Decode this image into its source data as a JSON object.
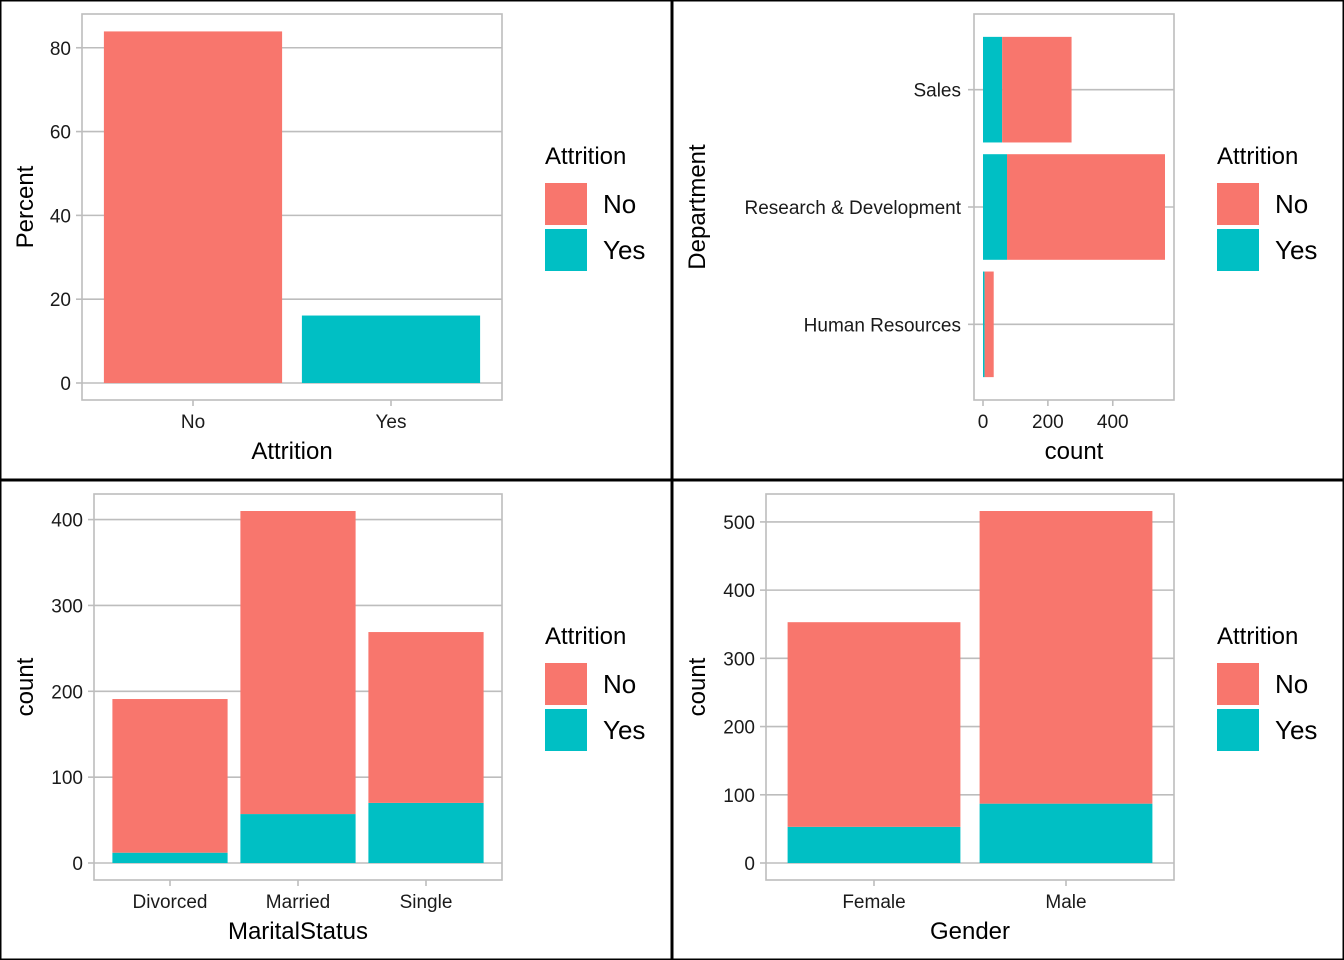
{
  "colors": {
    "No": "#F8766D",
    "Yes": "#00BFC4"
  },
  "chart_data": [
    {
      "type": "bar",
      "orientation": "vertical",
      "xlabel": "Attrition",
      "ylabel": "Percent",
      "categories": [
        "No",
        "Yes"
      ],
      "series": [
        {
          "name": "No",
          "values": [
            83.9,
            0
          ]
        },
        {
          "name": "Yes",
          "values": [
            0,
            16.1
          ]
        }
      ],
      "ylim": [
        0,
        84
      ],
      "yticks": [
        0,
        20,
        40,
        60,
        80
      ],
      "legend": {
        "title": "Attrition",
        "entries": [
          "No",
          "Yes"
        ],
        "position": "right"
      },
      "grid": true
    },
    {
      "type": "bar",
      "orientation": "horizontal",
      "stacked": true,
      "xlabel": "count",
      "ylabel": "Department",
      "categories": [
        "Human Resources",
        "Research & Development",
        "Sales"
      ],
      "series": [
        {
          "name": "Yes",
          "values": [
            5,
            74,
            59
          ]
        },
        {
          "name": "No",
          "values": [
            28,
            487,
            214
          ]
        }
      ],
      "xlim": [
        0,
        561
      ],
      "xticks": [
        0,
        200,
        400
      ],
      "legend": {
        "title": "Attrition",
        "entries": [
          "No",
          "Yes"
        ],
        "position": "right"
      },
      "grid": true
    },
    {
      "type": "bar",
      "orientation": "vertical",
      "stacked": true,
      "xlabel": "MaritalStatus",
      "ylabel": "count",
      "categories": [
        "Divorced",
        "Married",
        "Single"
      ],
      "series": [
        {
          "name": "Yes",
          "values": [
            12,
            57,
            70
          ]
        },
        {
          "name": "No",
          "values": [
            179,
            353,
            199
          ]
        }
      ],
      "ylim": [
        0,
        410
      ],
      "yticks": [
        0,
        100,
        200,
        300,
        400
      ],
      "legend": {
        "title": "Attrition",
        "entries": [
          "No",
          "Yes"
        ],
        "position": "right"
      },
      "grid": true
    },
    {
      "type": "bar",
      "orientation": "vertical",
      "stacked": true,
      "xlabel": "Gender",
      "ylabel": "count",
      "categories": [
        "Female",
        "Male"
      ],
      "series": [
        {
          "name": "Yes",
          "values": [
            53,
            87
          ]
        },
        {
          "name": "No",
          "values": [
            300,
            429
          ]
        }
      ],
      "ylim": [
        0,
        516
      ],
      "yticks": [
        0,
        100,
        200,
        300,
        400,
        500
      ],
      "legend": {
        "title": "Attrition",
        "entries": [
          "No",
          "Yes"
        ],
        "position": "right"
      },
      "grid": true
    }
  ]
}
